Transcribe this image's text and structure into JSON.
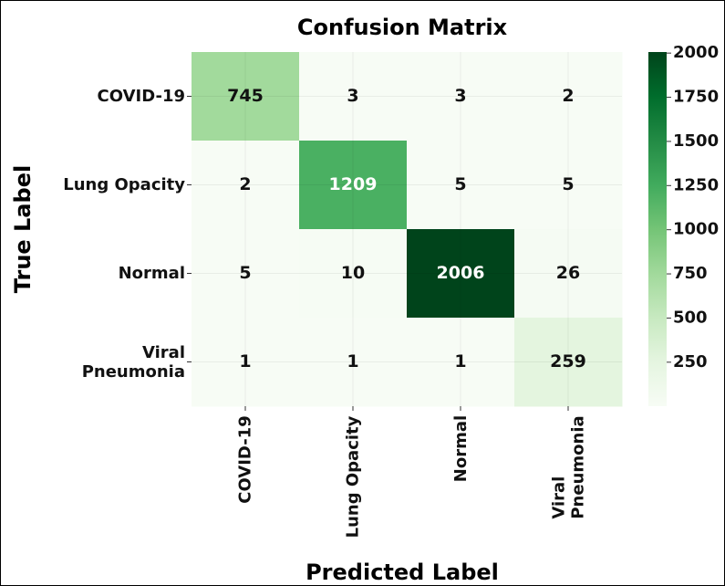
{
  "chart_data": {
    "type": "heatmap",
    "title": "Confusion Matrix",
    "xlabel": "Predicted Label",
    "ylabel": "True Label",
    "x_categories": [
      "COVID-19",
      "Lung Opacity",
      "Normal",
      "Viral\nPneumonia"
    ],
    "y_categories": [
      "COVID-19",
      "Lung Opacity",
      "Normal",
      "Viral\nPneumonia"
    ],
    "values": [
      [
        745,
        3,
        3,
        2
      ],
      [
        2,
        1209,
        5,
        5
      ],
      [
        5,
        10,
        2006,
        26
      ],
      [
        1,
        1,
        1,
        259
      ]
    ],
    "zlim": [
      1,
      2006
    ],
    "zticks": [
      250,
      500,
      750,
      1000,
      1250,
      1500,
      1750,
      2000
    ],
    "colormap": [
      "#f7fcf5",
      "#e5f5e0",
      "#c7e9c0",
      "#a1d99b",
      "#74c476",
      "#41ab5d",
      "#238b45",
      "#006d2c",
      "#00441b"
    ],
    "grid": true
  }
}
